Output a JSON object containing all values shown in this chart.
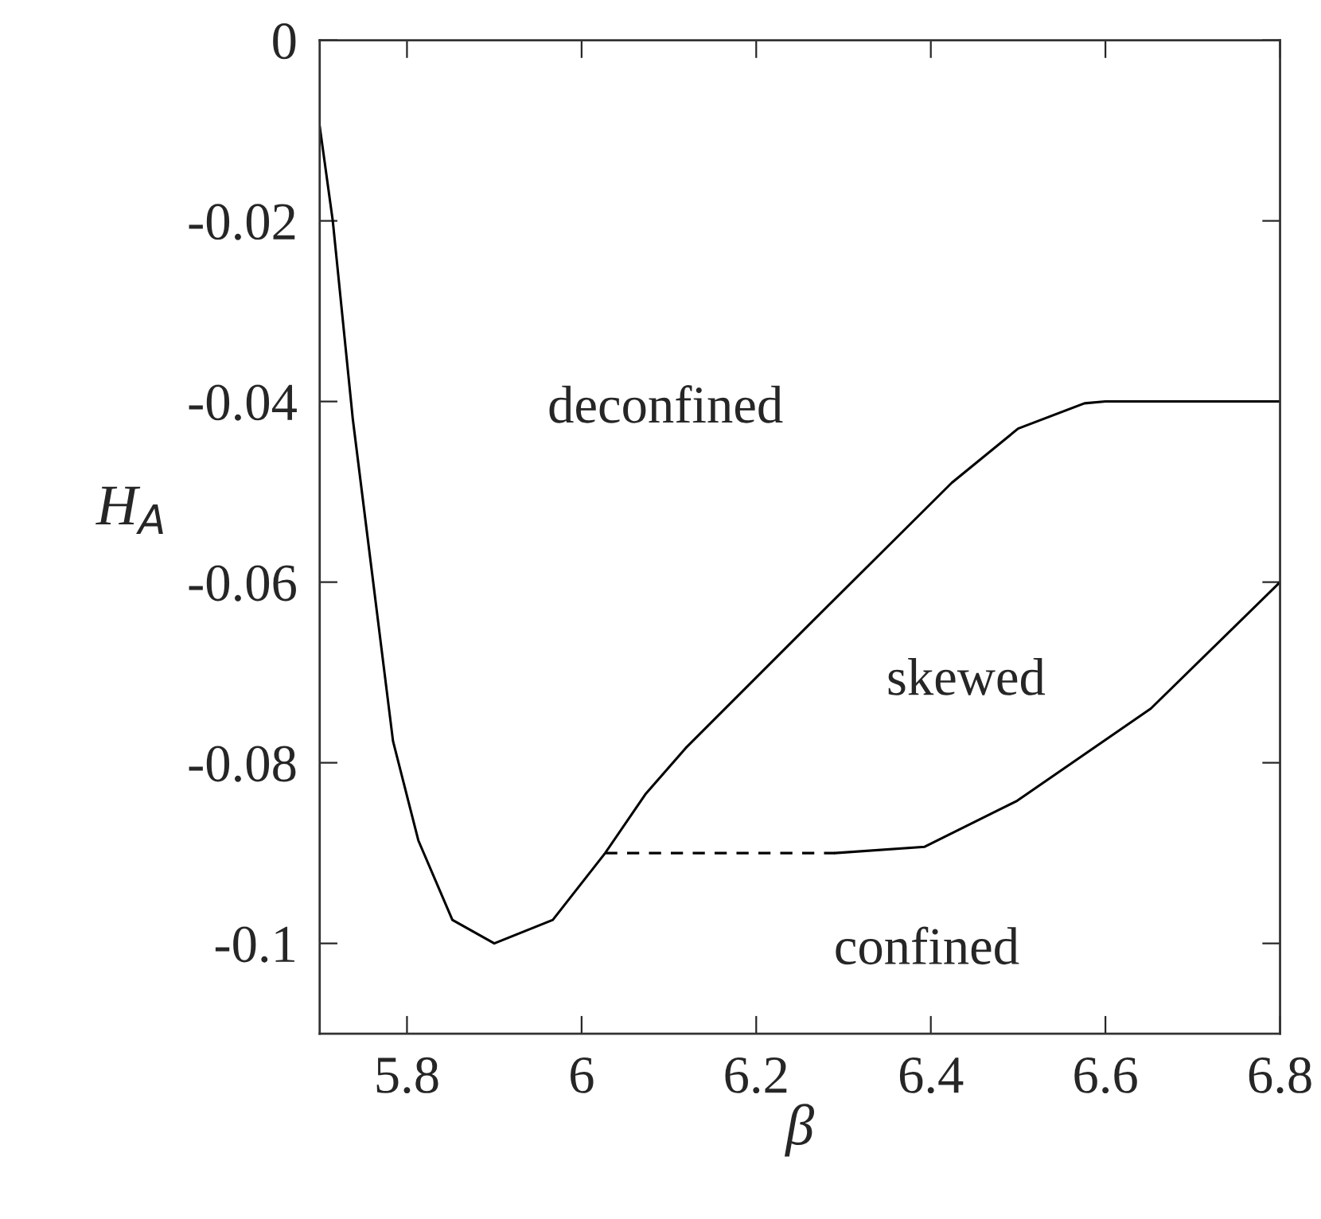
{
  "chart_data": {
    "type": "line",
    "xlabel": "β",
    "ylabel": "H$_{A}$",
    "series": [
      {
        "color": "#000000",
        "line_style": "solid",
        "x": [
          5.7,
          5.715,
          5.738,
          5.76,
          5.784,
          5.813,
          5.852,
          5.9,
          5.967,
          6.027,
          6.073,
          6.119,
          6.271,
          6.424,
          6.5,
          6.576,
          6.6,
          6.8
        ],
        "values": [
          -0.0095,
          -0.02,
          -0.042,
          -0.059,
          -0.0776,
          -0.0886,
          -0.0974,
          -0.1,
          -0.0974,
          -0.09,
          -0.0835,
          -0.0784,
          -0.0637,
          -0.049,
          -0.043,
          -0.0402,
          -0.04,
          -0.04
        ]
      },
      {
        "color": "#000000",
        "line_style": "dashed",
        "x": [
          6.027,
          6.29
        ],
        "values": [
          -0.09,
          -0.09
        ]
      },
      {
        "color": "#000000",
        "line_style": "solid",
        "x": [
          6.29,
          6.393,
          6.499,
          6.652,
          6.8
        ],
        "values": [
          -0.09,
          -0.0893,
          -0.0842,
          -0.074,
          -0.06
        ]
      }
    ],
    "annotations": [
      "deconfined",
      "skewed",
      "confined"
    ],
    "xlim": [
      5.7,
      6.8
    ],
    "ylim": [
      -0.11,
      0
    ],
    "xticks": [
      5.8,
      6,
      6.2,
      6.4,
      6.6,
      6.8
    ],
    "yticks": [
      0,
      {
        "value": -0.02,
        "label": "-0.02"
      },
      {
        "value": -0.04,
        "label": "-0.04"
      },
      {
        "value": -0.06,
        "label": "-0.06"
      },
      {
        "value": -0.08,
        "label": "-0.08"
      },
      {
        "value": -0.1,
        "label": "-0.1"
      }
    ],
    "grid": false,
    "legend": false
  }
}
